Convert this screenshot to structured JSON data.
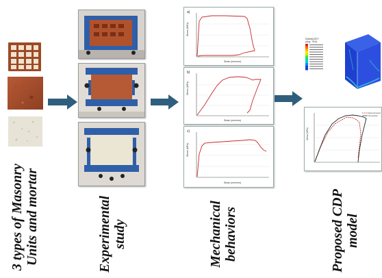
{
  "labels": {
    "col1": [
      "3 types of Masonry",
      "Units and mortar"
    ],
    "col2": [
      "Experimental",
      "study"
    ],
    "col3": [
      "Mechanical",
      "behaviors"
    ],
    "col4": [
      "Proposed CDP",
      "model"
    ]
  },
  "plot_panels": [
    {
      "tag": "a)",
      "ylabel": "Stress (MPa)",
      "xlabel": "Strain (mm/mm)"
    },
    {
      "tag": "b)",
      "ylabel": "Stress (MPa)",
      "xlabel": "Strain (mm/mm)"
    },
    {
      "tag": "c)",
      "ylabel": "Stress (MPa)",
      "xlabel": "Strain (mm/mm)"
    }
  ],
  "contour": {
    "title": "DAMAGET",
    "subtitle": "(Avg: 75%)"
  },
  "cdp_plot": {
    "ylabel": "Stress (MPa)",
    "legend": [
      "Experimental",
      "Numerical"
    ]
  },
  "colors": {
    "arrow": "#2f5f7d",
    "curve": "#c62828",
    "fe_blue": "#1f3fd0"
  }
}
